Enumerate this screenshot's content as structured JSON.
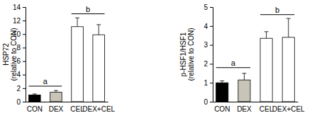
{
  "chart_data": [
    {
      "type": "bar",
      "ylabel": [
        "HSP72",
        "(relative to CON)"
      ],
      "categories": [
        "CON",
        "DEX",
        "CEL",
        "DEX+CEL"
      ],
      "values": [
        1.0,
        1.4,
        11.1,
        9.9
      ],
      "errors": [
        0.15,
        0.25,
        1.3,
        1.5
      ],
      "colors": [
        "#000000",
        "#c8c4b8",
        "#ffffff",
        "#ffffff"
      ],
      "ylim": [
        0,
        14
      ],
      "yticks": [
        0,
        2,
        4,
        6,
        8,
        10,
        12,
        14
      ],
      "brackets": [
        {
          "label": "a",
          "from": "CON",
          "to": "DEX",
          "y": 2.3
        },
        {
          "label": "b",
          "from": "CEL",
          "to": "DEX+CEL",
          "y": 13
        }
      ]
    },
    {
      "type": "bar",
      "ylabel": [
        "p-HSF1/HSF1",
        "(relative to CON)"
      ],
      "categories": [
        "CON",
        "DEX",
        "CEL",
        "DEX+CEL"
      ],
      "values": [
        1.0,
        1.15,
        3.35,
        3.4
      ],
      "errors": [
        0.1,
        0.35,
        0.35,
        1.0
      ],
      "colors": [
        "#000000",
        "#c8c4b8",
        "#ffffff",
        "#ffffff"
      ],
      "ylim": [
        0,
        5
      ],
      "yticks": [
        0,
        1,
        2,
        3,
        4,
        5
      ],
      "brackets": [
        {
          "label": "a",
          "from": "CON",
          "to": "DEX",
          "y": 1.8
        },
        {
          "label": "b",
          "from": "CEL",
          "to": "DEX+CEL",
          "y": 4.6
        }
      ]
    }
  ]
}
